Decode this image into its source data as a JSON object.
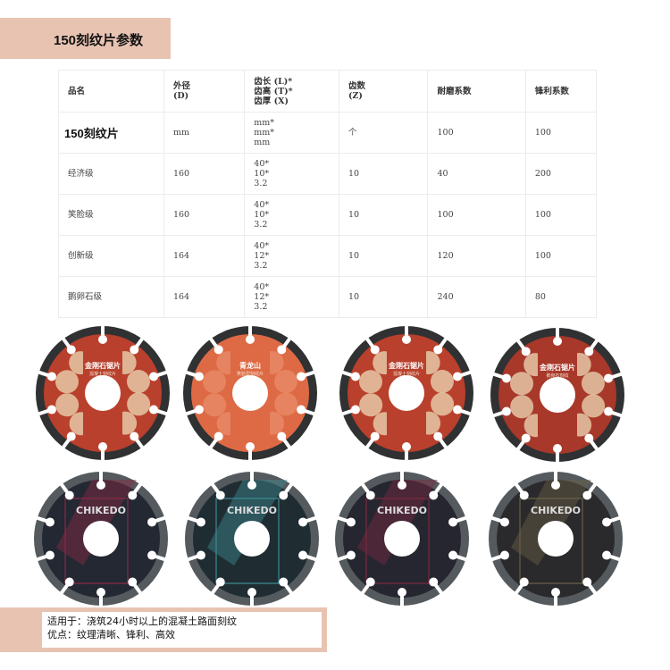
{
  "title": "150刻纹片参数",
  "table": {
    "headers": [
      [
        "品名"
      ],
      [
        "外径",
        "(D)"
      ],
      [
        "齿长 (L)*",
        "齿高 (T)*",
        "齿厚 (X)"
      ],
      [
        "齿数",
        "(Z)"
      ],
      [
        "耐磨系数"
      ],
      [
        "锋利系数"
      ]
    ],
    "rows": [
      [
        [
          "150刻纹片"
        ],
        [
          "mm"
        ],
        [
          "mm*",
          "mm*",
          "mm"
        ],
        [
          "个"
        ],
        [
          "100"
        ],
        [
          "100"
        ]
      ],
      [
        [
          "经济级"
        ],
        [
          "160"
        ],
        [
          "40*",
          "10*",
          "3.2"
        ],
        [
          "10"
        ],
        [
          "40"
        ],
        [
          "200"
        ]
      ],
      [
        [
          "笑脸级"
        ],
        [
          "160"
        ],
        [
          "40*",
          "10*",
          "3.2"
        ],
        [
          "10"
        ],
        [
          "100"
        ],
        [
          "100"
        ]
      ],
      [
        [
          "创新级"
        ],
        [
          "164"
        ],
        [
          "40*",
          "12*",
          "3.2"
        ],
        [
          "10"
        ],
        [
          "120"
        ],
        [
          "100"
        ]
      ],
      [
        [
          "鹅卵石级"
        ],
        [
          "164"
        ],
        [
          "40*",
          "12*",
          "3.2"
        ],
        [
          "10"
        ],
        [
          "240"
        ],
        [
          "80"
        ]
      ]
    ]
  },
  "blades": [
    {
      "brand": "金刚石锯片",
      "sub": "混凝土刻纹片",
      "color": "#b8402c",
      "pattern": "#e8cfae"
    },
    {
      "brand": "青龙山",
      "sub": "笑脸型刻纹片",
      "color": "#dd6a45",
      "pattern": "#e98a66"
    },
    {
      "brand": "金刚石锯片",
      "sub": "混凝土刻纹片",
      "color": "#b8402c",
      "pattern": "#e8cfae"
    },
    {
      "brand": "金刚石锯片",
      "sub": "鹅卵石刻纹",
      "color": "#a8382a",
      "pattern": "#e8cfae"
    },
    {
      "brand": "CHIKEDO",
      "sub": "",
      "color": "#232833",
      "pattern": "#8a2a45"
    },
    {
      "brand": "CHIKEDO",
      "sub": "",
      "color": "#1f2d33",
      "pattern": "#3d8a90"
    },
    {
      "brand": "CHIKEDO",
      "sub": "",
      "color": "#262630",
      "pattern": "#7a2a40"
    },
    {
      "brand": "CHIKEDO",
      "sub": "",
      "color": "#2a2a2c",
      "pattern": "#6a6048"
    }
  ],
  "footer": {
    "line1": "适用于：浇筑24小时以上的混凝土路面刻纹",
    "line2": "优点：纹理清晰、锋利、高效"
  }
}
